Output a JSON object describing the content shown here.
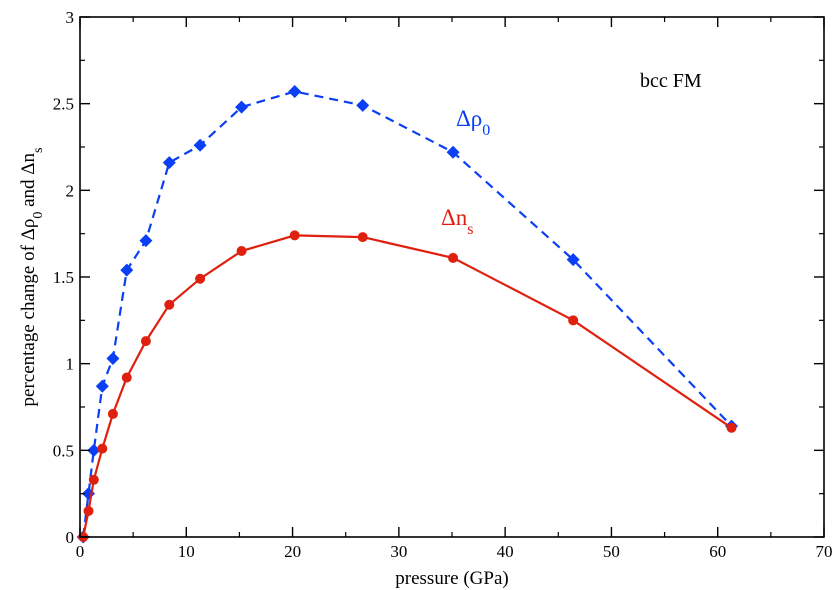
{
  "chart_data": {
    "type": "line",
    "xlabel": "pressure (GPa)",
    "ylabel": {
      "prefix": "percentage change of Δρ",
      "sub1": "0",
      "middle": " and Δn",
      "sub2": "s"
    },
    "xlim": [
      0,
      70
    ],
    "ylim": [
      0,
      3
    ],
    "xticks": [
      0,
      10,
      20,
      30,
      40,
      50,
      60,
      70
    ],
    "yticks": [
      0,
      0.5,
      1,
      1.5,
      2,
      2.5,
      3
    ],
    "xtick_labels": [
      "0",
      "10",
      "20",
      "30",
      "40",
      "50",
      "60",
      "70"
    ],
    "ytick_labels": [
      "0",
      "0.5",
      "1",
      "1.5",
      "2",
      "2.5",
      "3"
    ],
    "grid": false,
    "annotation": "bcc FM",
    "series": [
      {
        "name": "Δρ0",
        "label": {
          "base": "Δρ",
          "sub": "0"
        },
        "color": "#0a3ff5",
        "line_style": "dashed",
        "marker": "diamond",
        "x": [
          0.3,
          0.8,
          1.3,
          2.1,
          3.1,
          4.4,
          6.2,
          8.4,
          11.3,
          15.2,
          20.2,
          26.6,
          35.1,
          46.4,
          61.3
        ],
        "y": [
          0.0,
          0.25,
          0.5,
          0.87,
          1.03,
          1.54,
          1.71,
          2.16,
          2.26,
          2.48,
          2.57,
          2.49,
          2.22,
          1.6,
          0.64
        ]
      },
      {
        "name": "Δns",
        "label": {
          "base": "Δn",
          "sub": "s"
        },
        "color": "#e0200e",
        "line_style": "solid",
        "marker": "circle",
        "x": [
          0.3,
          0.8,
          1.3,
          2.1,
          3.1,
          4.4,
          6.2,
          8.4,
          11.3,
          15.2,
          20.2,
          26.6,
          35.1,
          46.4,
          61.3
        ],
        "y": [
          0.0,
          0.15,
          0.33,
          0.51,
          0.71,
          0.92,
          1.13,
          1.34,
          1.49,
          1.65,
          1.74,
          1.73,
          1.61,
          1.25,
          0.63
        ]
      }
    ]
  }
}
